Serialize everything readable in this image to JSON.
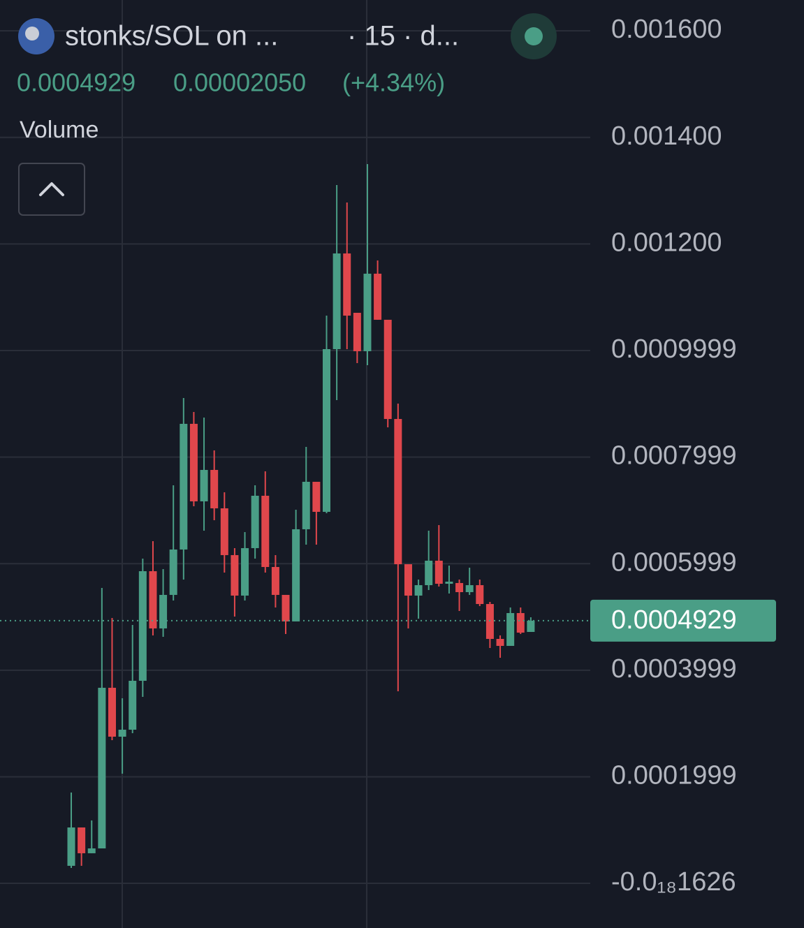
{
  "header": {
    "symbol": "stonks/SOL on ...",
    "interval": "· 15 · d...",
    "last": "0.0004929",
    "change": "0.00002050",
    "change_pct": "(+4.34%)",
    "indicator": "Volume"
  },
  "chart_data": {
    "type": "candlestick",
    "up_color": "#4a9e86",
    "down_color": "#e0474c",
    "ylim": [
      -8.39e-05,
      0.0016579
    ],
    "yticks": [
      {
        "value": 0.0016,
        "label": "0.001600"
      },
      {
        "value": 0.0014,
        "label": "0.001400"
      },
      {
        "value": 0.0012,
        "label": "0.001200"
      },
      0.0009999,
      0.0007999,
      0.0005999,
      0.0003999,
      0.0001999,
      {
        "value": -1.626e-19,
        "label": "-0.0₁₈1626"
      }
    ],
    "grid": true,
    "open": [
      3.28e-05,
      0.0001048,
      5.64e-05,
      6.55e-05,
      0.000367,
      0.0002752,
      0.0002883,
      0.0003801,
      0.0005858,
      0.0004784,
      0.0005413,
      0.0006265,
      0.0008624,
      0.0007169,
      0.0007759,
      0.0007038,
      0.000616,
      0.00054,
      0.0006291,
      0.0007274,
      0.0005937,
      0.0005413,
      0.0004915,
      0.0006645,
      0.0007536,
      0.0006972,
      0.0010026,
      0.0011822,
      0.0010708,
      0.0009987,
      0.0011442,
      0.0010577,
      0.0008715,
      0.0005989,
      0.00054,
      0.0005596,
      0.0006055,
      0.0005622,
      0.0005636,
      0.0005465,
      0.0005596,
      0.0005242,
      0.0004587,
      0.0004456,
      0.0005072,
      0.0004718
    ],
    "high": [
      0.0001704,
      0.0001048,
      0.000118,
      0.0005544,
      0.000498,
      0.0003473,
      0.0004849,
      0.0006094,
      0.0006422,
      0.0005898,
      0.000747,
      0.0009109,
      0.0008847,
      0.0008742,
      0.0008126,
      0.0007339,
      0.0006291,
      0.0006592,
      0.000747,
      0.0007733,
      0.000616,
      0.0005413,
      0.0007012,
      0.0008191,
      0.0007536,
      0.0010655,
      0.0013106,
      0.0012778,
      0.0010708,
      0.0013499,
      0.0011691,
      0.0010577,
      0.0009004,
      0.0005989,
      0.0005701,
      0.0006619,
      0.0006723,
      0.0005963,
      0.0005701,
      0.0005924,
      0.0005701,
      0.0005282,
      0.0004653,
      0.0005177,
      0.0005177,
      0.0004993
    ],
    "low": [
      2.88e-05,
      3.28e-05,
      5.64e-05,
      6.55e-05,
      0.0002687,
      0.0002058,
      0.0002818,
      0.0003499,
      0.0004653,
      0.0004626,
      0.0005308,
      0.0005701,
      0.0007077,
      0.0006619,
      0.0006815,
      0.0005832,
      0.0005006,
      0.0005308,
      0.0006094,
      0.0005832,
      0.0005177,
      0.0004679,
      0.0004915,
      0.0006356,
      0.0006356,
      0.0006946,
      0.0009069,
      0.0010026,
      0.0009764,
      0.0009725,
      0.0010577,
      0.0008558,
      0.0003604,
      0.0004784,
      0.0004967,
      0.0005505,
      0.000557,
      0.0005439,
      0.0005111,
      0.0005413,
      0.0005203,
      0.0004417,
      0.0004233,
      0.0004456,
      0.0004679,
      0.0004718
    ],
    "close": [
      0.0001048,
      5.64e-05,
      6.55e-05,
      0.000367,
      0.0002752,
      0.0002883,
      0.0003801,
      0.0005858,
      0.0004784,
      0.0005413,
      0.0006265,
      0.0008624,
      0.0007169,
      0.0007759,
      0.0007038,
      0.000616,
      0.00054,
      0.0006291,
      0.0007274,
      0.0005937,
      0.0005413,
      0.0004915,
      0.0006645,
      0.0007536,
      0.0006972,
      0.0010026,
      0.0011822,
      0.0010655,
      0.0009987,
      0.0011442,
      0.0010577,
      0.0008715,
      0.0005989,
      0.00054,
      0.0005596,
      0.0006055,
      0.0005622,
      0.0005662,
      0.0005465,
      0.0005596,
      0.0005242,
      0.0004587,
      0.0004456,
      0.0005072,
      0.0004705,
      0.0004929
    ]
  }
}
